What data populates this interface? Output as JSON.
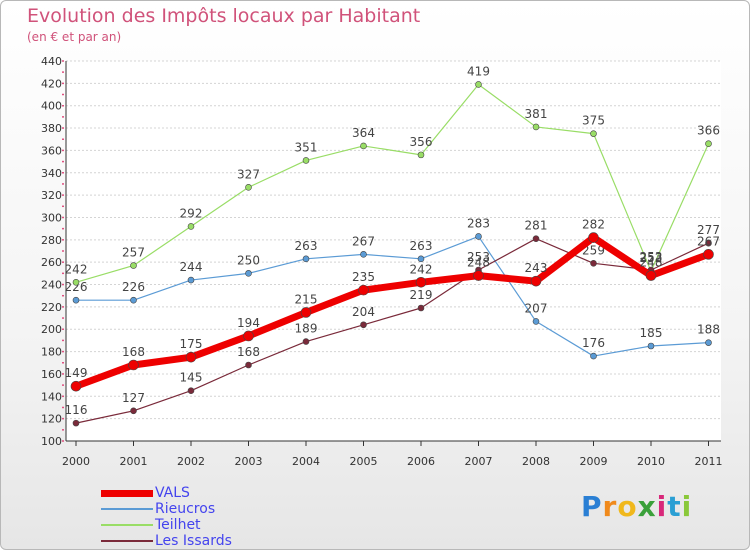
{
  "title": "Evolution des Impôts locaux par Habitant",
  "subtitle": "(en € et par an)",
  "logo": {
    "letters": [
      "P",
      "r",
      "o",
      "x",
      "i",
      "t",
      "i"
    ],
    "colors": [
      "#2a7fd4",
      "#f08a1c",
      "#f0b81c",
      "#3aa03a",
      "#d8287a",
      "#2a9fd4",
      "#8ac83a"
    ]
  },
  "chart_data": {
    "type": "line",
    "title": "Evolution des Impôts locaux par Habitant",
    "subtitle": "(en € et par an)",
    "xlabel": "",
    "ylabel": "",
    "x": [
      "2000",
      "2001",
      "2002",
      "2003",
      "2004",
      "2005",
      "2006",
      "2007",
      "2008",
      "2009",
      "2010",
      "2011"
    ],
    "ylim": [
      100,
      440
    ],
    "yticks": [
      100,
      120,
      140,
      160,
      180,
      200,
      220,
      240,
      260,
      280,
      300,
      320,
      340,
      360,
      380,
      400,
      420,
      440
    ],
    "grid": "horizontal dashed",
    "legend_position": "bottom-left",
    "series": [
      {
        "name": "Rieucros",
        "color": "#5b9bd5",
        "width": 1.2,
        "values": [
          226,
          226,
          244,
          250,
          263,
          267,
          263,
          283,
          207,
          176,
          185,
          188
        ]
      },
      {
        "name": "Teilhet",
        "color": "#99dd66",
        "width": 1.2,
        "values": [
          242,
          257,
          292,
          327,
          351,
          364,
          356,
          419,
          381,
          375,
          252,
          366
        ]
      },
      {
        "name": "Les Issards",
        "color": "#7a2a3a",
        "width": 1.2,
        "values": [
          116,
          127,
          145,
          168,
          189,
          204,
          219,
          253,
          281,
          259,
          253,
          277
        ]
      },
      {
        "name": "VALS",
        "color": "#ee0000",
        "width": 7,
        "values": [
          149,
          168,
          175,
          194,
          215,
          235,
          242,
          248,
          243,
          282,
          248,
          267
        ]
      }
    ],
    "legend_order": [
      "VALS",
      "Rieucros",
      "Teilhet",
      "Les Issards"
    ]
  }
}
